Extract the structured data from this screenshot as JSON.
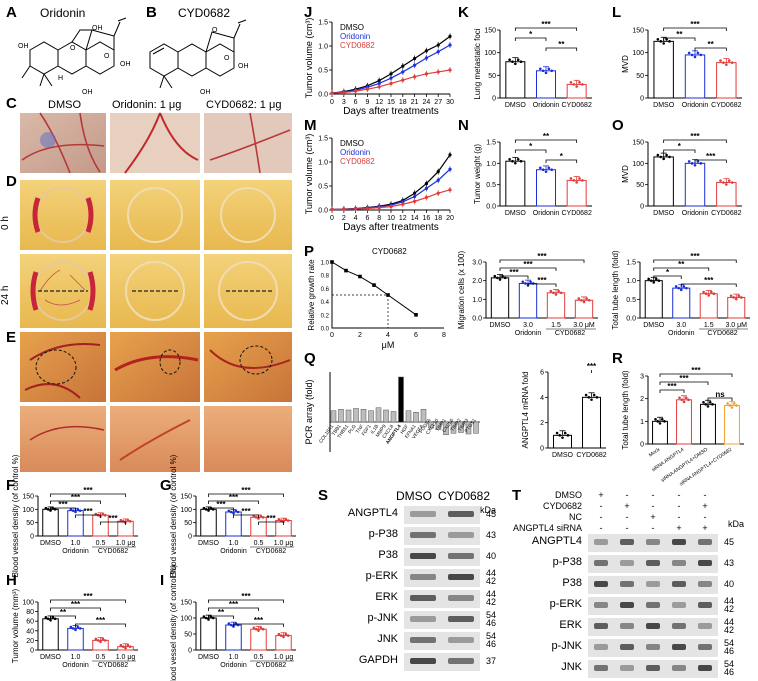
{
  "panels": {
    "A": {
      "letter": "A",
      "title": "Oridonin",
      "groups": [
        "OH",
        "OH",
        "OH",
        "O",
        "OH",
        "H",
        "O"
      ]
    },
    "B": {
      "letter": "B",
      "title": "CYD0682",
      "groups": [
        "O",
        "OH",
        "OH",
        "O"
      ]
    },
    "C": {
      "letter": "C",
      "cols": [
        "DMSO",
        "Oridonin: 1 μg",
        "CYD0682: 1 μg"
      ]
    },
    "D": {
      "letter": "D",
      "rows": [
        "0 h",
        "24 h"
      ]
    },
    "E": {
      "letter": "E"
    },
    "F": {
      "letter": "F",
      "ylabel": "Blood vessel density (of control %)",
      "cats": [
        "DMSO",
        "1.0",
        "0.5",
        "1.0 μg"
      ],
      "groups": [
        "Oridonin",
        "CYD0682"
      ],
      "values": [
        100,
        95,
        78,
        55
      ],
      "ymax": 150,
      "ticks": [
        "0",
        "50",
        "100",
        "150"
      ],
      "sig": [
        "***",
        "***",
        "***",
        "***",
        "***"
      ]
    },
    "G": {
      "letter": "G",
      "ylabel": "Blood vessel density (of control %)",
      "cats": [
        "DMSO",
        "1.0",
        "0.5",
        "1.0 μg"
      ],
      "groups": [
        "Oridonin",
        "CYD0682"
      ],
      "values": [
        100,
        90,
        70,
        58
      ],
      "ymax": 150,
      "ticks": [
        "0",
        "50",
        "100",
        "150"
      ],
      "sig": [
        "***",
        "***",
        "***",
        "***",
        "***"
      ]
    },
    "H": {
      "letter": "H",
      "ylabel": "Tumor volume (mm³)",
      "cats": [
        "DMSO",
        "1.0",
        "0.5",
        "1.0 μg"
      ],
      "groups": [
        "Oridonin",
        "CYD0682"
      ],
      "values": [
        65,
        45,
        20,
        7
      ],
      "ymax": 100,
      "ticks": [
        "0",
        "20",
        "40",
        "60",
        "80",
        "100"
      ],
      "sig": [
        "***",
        "***",
        "**",
        "***"
      ]
    },
    "I": {
      "letter": "I",
      "ylabel": "Blood vessel density (of control %)",
      "cats": [
        "DMSO",
        "1.0",
        "0.5",
        "1.0 μg"
      ],
      "groups": [
        "Oridonin",
        "CYD0682"
      ],
      "values": [
        100,
        78,
        65,
        45
      ],
      "ymax": 150,
      "ticks": [
        "0",
        "50",
        "100",
        "150"
      ],
      "sig": [
        "***",
        "***",
        "**",
        "***"
      ]
    },
    "J": {
      "letter": "J",
      "ylabel": "Tumor volume (cm³)",
      "xlabel": "Days after treatments",
      "legend": [
        "DMSO",
        "Oridonin",
        "CYD0682"
      ]
    },
    "K": {
      "letter": "K",
      "ylabel": "Lung metastatic foci",
      "cats": [
        "DMSO",
        "Oridonin",
        "CYD0682"
      ],
      "values": [
        80,
        60,
        30
      ],
      "ymax": 150,
      "ticks": [
        "0",
        "50",
        "100",
        "150"
      ],
      "sig": [
        "***",
        "*",
        "**"
      ]
    },
    "L": {
      "letter": "L",
      "ylabel": "MVD",
      "cats": [
        "DMSO",
        "Oridonin",
        "CYD0682"
      ],
      "values": [
        125,
        95,
        78
      ],
      "ymax": 150,
      "ticks": [
        "0",
        "50",
        "100",
        "150"
      ],
      "sig": [
        "***",
        "**",
        "**"
      ]
    },
    "M": {
      "letter": "M",
      "ylabel": "Tumor volume (cm³)",
      "xlabel": "Days after treatments",
      "legend": [
        "DMSO",
        "Oridonin",
        "CYD0682"
      ]
    },
    "N": {
      "letter": "N",
      "ylabel": "Tumor weight (g)",
      "cats": [
        "DMSO",
        "Oridonin",
        "CYD0682"
      ],
      "values": [
        1.05,
        0.85,
        0.6
      ],
      "ymax": 1.5,
      "ticks": [
        "0.0",
        "0.5",
        "1.0",
        "1.5"
      ],
      "sig": [
        "**",
        "*",
        "*"
      ]
    },
    "O": {
      "letter": "O",
      "ylabel": "MVD",
      "cats": [
        "DMSO",
        "Oridonin",
        "CYD0682"
      ],
      "values": [
        115,
        100,
        55
      ],
      "ymax": 150,
      "ticks": [
        "0",
        "50",
        "100",
        "150"
      ],
      "sig": [
        "***",
        "*",
        "***"
      ]
    },
    "P": {
      "letter": "P",
      "title": "CYD0682",
      "ylabel": "Relative growth rate",
      "xlabel": "μM",
      "xticks": [
        "0",
        "2",
        "4",
        "6",
        "8"
      ],
      "yticks": [
        "0.0",
        "0.2",
        "0.4",
        "0.6",
        "0.8",
        "1.0"
      ]
    },
    "MIG": {
      "ylabel": "Migration cells (x 100)",
      "cats": [
        "DMSO",
        "3.0",
        "1.5",
        "3.0 μM"
      ],
      "groups": [
        "Oridonin",
        "CYD0682"
      ],
      "values": [
        2.15,
        1.85,
        1.35,
        0.95
      ],
      "ymax": 3.0,
      "ticks": [
        "0.0",
        "1.0",
        "2.0",
        "3.0"
      ],
      "sig": [
        "***",
        "***",
        "***",
        "***"
      ]
    },
    "TUBE": {
      "ylabel": "Total tube length (fold)",
      "cats": [
        "DMSO",
        "3.0",
        "1.5",
        "3.0 μM"
      ],
      "groups": [
        "Oridonin",
        "CYD0682"
      ],
      "values": [
        1.0,
        0.8,
        0.65,
        0.55
      ],
      "ymax": 1.5,
      "ticks": [
        "0.0",
        "0.5",
        "1.0",
        "1.5"
      ],
      "sig": [
        "***",
        "**",
        "*",
        "***"
      ]
    },
    "Q": {
      "letter": "Q",
      "ylabel": "PCR array (fold)",
      "highlight": "ANGPTL4"
    },
    "QR": {
      "ylabel": "ANGPTL4 mRNA fold",
      "cats": [
        "DMSO",
        "CYD0682"
      ],
      "values": [
        1.0,
        4.0
      ],
      "ymax": 6,
      "ticks": [
        "0",
        "2",
        "4",
        "6"
      ],
      "sig": [
        "***"
      ]
    },
    "R": {
      "letter": "R",
      "ylabel": "Total tube length (fold)",
      "cats": [
        "Mock",
        "siRNA ANGPTL4",
        "siRNA ANGPTL4+DMSO",
        "siRNA ANGPTL4+CYD0682"
      ],
      "values": [
        1.0,
        1.95,
        1.75,
        1.7
      ],
      "ymax": 3,
      "ticks": [
        "0",
        "1",
        "2",
        "3"
      ],
      "sig": [
        "***",
        "***",
        "***",
        "ns"
      ]
    },
    "S": {
      "letter": "S",
      "cols": [
        "DMSO",
        "CYD0682"
      ],
      "unit": "kDa",
      "rows": [
        {
          "name": "ANGPTL4",
          "kda": "45"
        },
        {
          "name": "p-P38",
          "kda": "43"
        },
        {
          "name": "P38",
          "kda": "40"
        },
        {
          "name": "p-ERK",
          "kda": "44\n42"
        },
        {
          "name": "ERK",
          "kda": "44\n42"
        },
        {
          "name": "p-JNK",
          "kda": "54\n46"
        },
        {
          "name": "JNK",
          "kda": "54\n46"
        },
        {
          "name": "GAPDH",
          "kda": "37"
        }
      ]
    },
    "T": {
      "letter": "T",
      "unit": "kDa",
      "conds": [
        {
          "name": "DMSO",
          "marks": [
            "+",
            "-",
            "-",
            "-",
            "-"
          ]
        },
        {
          "name": "CYD0682",
          "marks": [
            "-",
            "+",
            "-",
            "-",
            "+"
          ]
        },
        {
          "name": "NC",
          "marks": [
            "-",
            "-",
            "+",
            "-",
            "-"
          ]
        },
        {
          "name": "ANGPTL4 siRNA",
          "marks": [
            "-",
            "-",
            "-",
            "+",
            "+"
          ]
        }
      ],
      "rows": [
        {
          "name": "ANGPTL4",
          "kda": "45"
        },
        {
          "name": "p-P38",
          "kda": "43"
        },
        {
          "name": "P38",
          "kda": "40"
        },
        {
          "name": "p-ERK",
          "kda": "44\n42"
        },
        {
          "name": "ERK",
          "kda": "44\n42"
        },
        {
          "name": "p-JNK",
          "kda": "54\n46"
        },
        {
          "name": "JNK",
          "kda": "54\n46"
        },
        {
          "name": "GAPDH",
          "kda": "37"
        }
      ]
    }
  },
  "chart_data": [
    {
      "type": "line",
      "panel": "J",
      "ylabel": "Tumor volume (cm³)",
      "xlabel": "Days after treatments",
      "x": [
        0,
        3,
        6,
        9,
        12,
        15,
        18,
        21,
        24,
        27,
        30
      ],
      "ylim": [
        0,
        1.5
      ],
      "series": [
        {
          "name": "DMSO",
          "values": [
            0.02,
            0.05,
            0.1,
            0.17,
            0.28,
            0.42,
            0.58,
            0.74,
            0.9,
            1.02,
            1.2
          ]
        },
        {
          "name": "Oridonin",
          "values": [
            0.02,
            0.04,
            0.08,
            0.14,
            0.22,
            0.33,
            0.46,
            0.6,
            0.75,
            0.88,
            1.02
          ]
        },
        {
          "name": "CYD0682",
          "values": [
            0.02,
            0.03,
            0.06,
            0.1,
            0.15,
            0.22,
            0.29,
            0.36,
            0.42,
            0.46,
            0.5
          ]
        }
      ]
    },
    {
      "type": "line",
      "panel": "M",
      "ylabel": "Tumor volume (cm³)",
      "xlabel": "Days after treatments",
      "x": [
        0,
        2,
        4,
        6,
        8,
        10,
        12,
        14,
        16,
        18,
        20
      ],
      "ylim": [
        0,
        1.5
      ],
      "series": [
        {
          "name": "DMSO",
          "values": [
            0.01,
            0.02,
            0.03,
            0.05,
            0.08,
            0.12,
            0.2,
            0.35,
            0.55,
            0.8,
            1.15
          ]
        },
        {
          "name": "Oridonin",
          "values": [
            0.01,
            0.02,
            0.03,
            0.04,
            0.07,
            0.1,
            0.17,
            0.28,
            0.45,
            0.62,
            0.85
          ]
        },
        {
          "name": "CYD0682",
          "values": [
            0.01,
            0.015,
            0.02,
            0.03,
            0.05,
            0.07,
            0.12,
            0.18,
            0.26,
            0.35,
            0.42
          ]
        }
      ]
    },
    {
      "type": "line",
      "panel": "P",
      "x": [
        0,
        1,
        2,
        3,
        4,
        6
      ],
      "values": [
        1.0,
        0.87,
        0.78,
        0.65,
        0.5,
        0.2
      ],
      "xlim": [
        0,
        8
      ],
      "ylim": [
        0,
        1.0
      ]
    },
    {
      "type": "bar",
      "panel": "Q",
      "categories": [
        "COL18A1",
        "TBB1",
        "THBS1",
        "PLG",
        "TNF",
        "FGF1",
        "IL1B",
        "MMP9",
        "CXCL8",
        "ANGPTL4",
        "HGF",
        "EFNA1",
        "VEGFA",
        "PDGFA",
        "CXCL10",
        "TIMP1",
        "CXCL6",
        "TIMP2",
        "TIMP3",
        "PTGS1"
      ],
      "values": [
        1.5,
        1.7,
        1.6,
        1.8,
        1.7,
        1.5,
        1.9,
        1.6,
        1.4,
        6.0,
        1.5,
        1.3,
        1.7,
        -0.8,
        -1.0,
        -1.7,
        -1.5,
        -1.4,
        -1.6,
        -1.5
      ]
    }
  ]
}
